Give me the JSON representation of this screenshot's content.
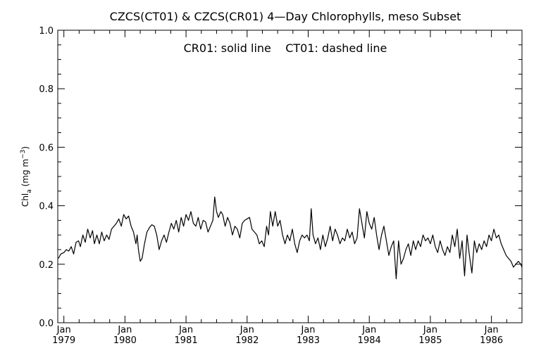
{
  "chart_data": {
    "type": "line",
    "title": "CZCS(CT01) & CZCS(CR01) 4—Day Chlorophylls, meso Subset",
    "annotation": "CR01: solid line    CT01: dashed line",
    "ylabel": {
      "main": "Chl",
      "sub": "a",
      "unit_pre": " (mg m",
      "sup": "−3",
      "unit_post": ")"
    },
    "xlabel": "",
    "xlim": [
      1978.9,
      1986.5
    ],
    "ylim": [
      0.0,
      1.0
    ],
    "y_ticks": [
      "0.0",
      "0.2",
      "0.4",
      "0.6",
      "0.8",
      "1.0"
    ],
    "x_ticks": [
      {
        "month": "Jan",
        "year": "1979",
        "x": 1979.0
      },
      {
        "month": "Jan",
        "year": "1980",
        "x": 1980.0
      },
      {
        "month": "Jan",
        "year": "1981",
        "x": 1981.0
      },
      {
        "month": "Jan",
        "year": "1982",
        "x": 1982.0
      },
      {
        "month": "Jan",
        "year": "1983",
        "x": 1983.0
      },
      {
        "month": "Jan",
        "year": "1984",
        "x": 1984.0
      },
      {
        "month": "Jan",
        "year": "1985",
        "x": 1985.0
      },
      {
        "month": "Jan",
        "year": "1986",
        "x": 1986.0
      }
    ],
    "grid": false,
    "series": [
      {
        "name": "CR01",
        "style": "solid",
        "color": "#000000",
        "points": [
          [
            1978.91,
            0.22
          ],
          [
            1978.95,
            0.235
          ],
          [
            1979.0,
            0.24
          ],
          [
            1979.04,
            0.25
          ],
          [
            1979.08,
            0.245
          ],
          [
            1979.12,
            0.26
          ],
          [
            1979.16,
            0.235
          ],
          [
            1979.2,
            0.275
          ],
          [
            1979.24,
            0.28
          ],
          [
            1979.27,
            0.26
          ],
          [
            1979.31,
            0.3
          ],
          [
            1979.35,
            0.275
          ],
          [
            1979.39,
            0.32
          ],
          [
            1979.43,
            0.29
          ],
          [
            1979.47,
            0.315
          ],
          [
            1979.5,
            0.27
          ],
          [
            1979.54,
            0.3
          ],
          [
            1979.58,
            0.27
          ],
          [
            1979.62,
            0.31
          ],
          [
            1979.66,
            0.28
          ],
          [
            1979.7,
            0.3
          ],
          [
            1979.74,
            0.285
          ],
          [
            1979.78,
            0.32
          ],
          [
            1979.82,
            0.33
          ],
          [
            1979.86,
            0.34
          ],
          [
            1979.9,
            0.355
          ],
          [
            1979.94,
            0.33
          ],
          [
            1979.98,
            0.37
          ],
          [
            1980.02,
            0.355
          ],
          [
            1980.06,
            0.365
          ],
          [
            1980.1,
            0.33
          ],
          [
            1980.14,
            0.31
          ],
          [
            1980.18,
            0.27
          ],
          [
            1980.2,
            0.3
          ],
          [
            1980.22,
            0.25
          ],
          [
            1980.25,
            0.21
          ],
          [
            1980.28,
            0.22
          ],
          [
            1980.32,
            0.27
          ],
          [
            1980.36,
            0.31
          ],
          [
            1980.4,
            0.325
          ],
          [
            1980.44,
            0.335
          ],
          [
            1980.48,
            0.33
          ],
          [
            1980.52,
            0.3
          ],
          [
            1980.56,
            0.25
          ],
          [
            1980.6,
            0.28
          ],
          [
            1980.64,
            0.3
          ],
          [
            1980.68,
            0.275
          ],
          [
            1980.72,
            0.31
          ],
          [
            1980.76,
            0.34
          ],
          [
            1980.8,
            0.32
          ],
          [
            1980.84,
            0.35
          ],
          [
            1980.88,
            0.31
          ],
          [
            1980.92,
            0.36
          ],
          [
            1980.96,
            0.33
          ],
          [
            1981.0,
            0.37
          ],
          [
            1981.04,
            0.35
          ],
          [
            1981.08,
            0.38
          ],
          [
            1981.12,
            0.34
          ],
          [
            1981.16,
            0.33
          ],
          [
            1981.2,
            0.36
          ],
          [
            1981.24,
            0.32
          ],
          [
            1981.28,
            0.35
          ],
          [
            1981.32,
            0.345
          ],
          [
            1981.36,
            0.31
          ],
          [
            1981.4,
            0.33
          ],
          [
            1981.44,
            0.35
          ],
          [
            1981.47,
            0.43
          ],
          [
            1981.5,
            0.38
          ],
          [
            1981.53,
            0.36
          ],
          [
            1981.57,
            0.38
          ],
          [
            1981.6,
            0.37
          ],
          [
            1981.64,
            0.33
          ],
          [
            1981.68,
            0.36
          ],
          [
            1981.72,
            0.34
          ],
          [
            1981.76,
            0.3
          ],
          [
            1981.8,
            0.33
          ],
          [
            1981.84,
            0.32
          ],
          [
            1981.88,
            0.29
          ],
          [
            1981.92,
            0.34
          ],
          [
            1981.96,
            0.35
          ],
          [
            1982.0,
            0.355
          ],
          [
            1982.04,
            0.36
          ],
          [
            1982.08,
            0.32
          ],
          [
            1982.12,
            0.31
          ],
          [
            1982.16,
            0.3
          ],
          [
            1982.2,
            0.27
          ],
          [
            1982.24,
            0.28
          ],
          [
            1982.28,
            0.26
          ],
          [
            1982.32,
            0.33
          ],
          [
            1982.35,
            0.3
          ],
          [
            1982.38,
            0.38
          ],
          [
            1982.42,
            0.33
          ],
          [
            1982.46,
            0.38
          ],
          [
            1982.5,
            0.33
          ],
          [
            1982.54,
            0.35
          ],
          [
            1982.58,
            0.3
          ],
          [
            1982.62,
            0.27
          ],
          [
            1982.66,
            0.3
          ],
          [
            1982.7,
            0.28
          ],
          [
            1982.74,
            0.32
          ],
          [
            1982.78,
            0.27
          ],
          [
            1982.82,
            0.24
          ],
          [
            1982.86,
            0.28
          ],
          [
            1982.9,
            0.3
          ],
          [
            1982.94,
            0.29
          ],
          [
            1982.98,
            0.3
          ],
          [
            1983.02,
            0.28
          ],
          [
            1983.05,
            0.39
          ],
          [
            1983.08,
            0.3
          ],
          [
            1983.12,
            0.27
          ],
          [
            1983.16,
            0.29
          ],
          [
            1983.2,
            0.25
          ],
          [
            1983.24,
            0.3
          ],
          [
            1983.28,
            0.26
          ],
          [
            1983.32,
            0.29
          ],
          [
            1983.36,
            0.33
          ],
          [
            1983.4,
            0.28
          ],
          [
            1983.44,
            0.32
          ],
          [
            1983.48,
            0.3
          ],
          [
            1983.52,
            0.27
          ],
          [
            1983.56,
            0.29
          ],
          [
            1983.6,
            0.28
          ],
          [
            1983.64,
            0.32
          ],
          [
            1983.68,
            0.29
          ],
          [
            1983.72,
            0.31
          ],
          [
            1983.76,
            0.27
          ],
          [
            1983.8,
            0.29
          ],
          [
            1983.84,
            0.39
          ],
          [
            1983.88,
            0.34
          ],
          [
            1983.92,
            0.29
          ],
          [
            1983.96,
            0.38
          ],
          [
            1984.0,
            0.34
          ],
          [
            1984.04,
            0.32
          ],
          [
            1984.08,
            0.36
          ],
          [
            1984.12,
            0.3
          ],
          [
            1984.16,
            0.25
          ],
          [
            1984.2,
            0.3
          ],
          [
            1984.24,
            0.33
          ],
          [
            1984.28,
            0.28
          ],
          [
            1984.32,
            0.23
          ],
          [
            1984.36,
            0.26
          ],
          [
            1984.4,
            0.28
          ],
          [
            1984.44,
            0.15
          ],
          [
            1984.48,
            0.28
          ],
          [
            1984.52,
            0.2
          ],
          [
            1984.56,
            0.22
          ],
          [
            1984.6,
            0.25
          ],
          [
            1984.64,
            0.27
          ],
          [
            1984.68,
            0.23
          ],
          [
            1984.72,
            0.28
          ],
          [
            1984.76,
            0.25
          ],
          [
            1984.8,
            0.28
          ],
          [
            1984.84,
            0.26
          ],
          [
            1984.88,
            0.3
          ],
          [
            1984.92,
            0.28
          ],
          [
            1984.96,
            0.29
          ],
          [
            1985.0,
            0.27
          ],
          [
            1985.04,
            0.3
          ],
          [
            1985.08,
            0.26
          ],
          [
            1985.12,
            0.24
          ],
          [
            1985.16,
            0.28
          ],
          [
            1985.2,
            0.25
          ],
          [
            1985.24,
            0.23
          ],
          [
            1985.28,
            0.26
          ],
          [
            1985.32,
            0.24
          ],
          [
            1985.36,
            0.3
          ],
          [
            1985.4,
            0.26
          ],
          [
            1985.44,
            0.32
          ],
          [
            1985.48,
            0.22
          ],
          [
            1985.52,
            0.28
          ],
          [
            1985.56,
            0.16
          ],
          [
            1985.6,
            0.3
          ],
          [
            1985.64,
            0.23
          ],
          [
            1985.68,
            0.17
          ],
          [
            1985.72,
            0.28
          ],
          [
            1985.76,
            0.24
          ],
          [
            1985.8,
            0.27
          ],
          [
            1985.84,
            0.25
          ],
          [
            1985.88,
            0.28
          ],
          [
            1985.92,
            0.26
          ],
          [
            1985.96,
            0.3
          ],
          [
            1986.0,
            0.28
          ],
          [
            1986.04,
            0.32
          ],
          [
            1986.08,
            0.29
          ],
          [
            1986.12,
            0.3
          ],
          [
            1986.16,
            0.27
          ],
          [
            1986.2,
            0.25
          ],
          [
            1986.24,
            0.23
          ],
          [
            1986.28,
            0.22
          ],
          [
            1986.32,
            0.21
          ],
          [
            1986.36,
            0.19
          ],
          [
            1986.4,
            0.2
          ],
          [
            1986.44,
            0.21
          ],
          [
            1986.48,
            0.2
          ],
          [
            1986.5,
            0.19
          ]
        ]
      }
    ]
  }
}
